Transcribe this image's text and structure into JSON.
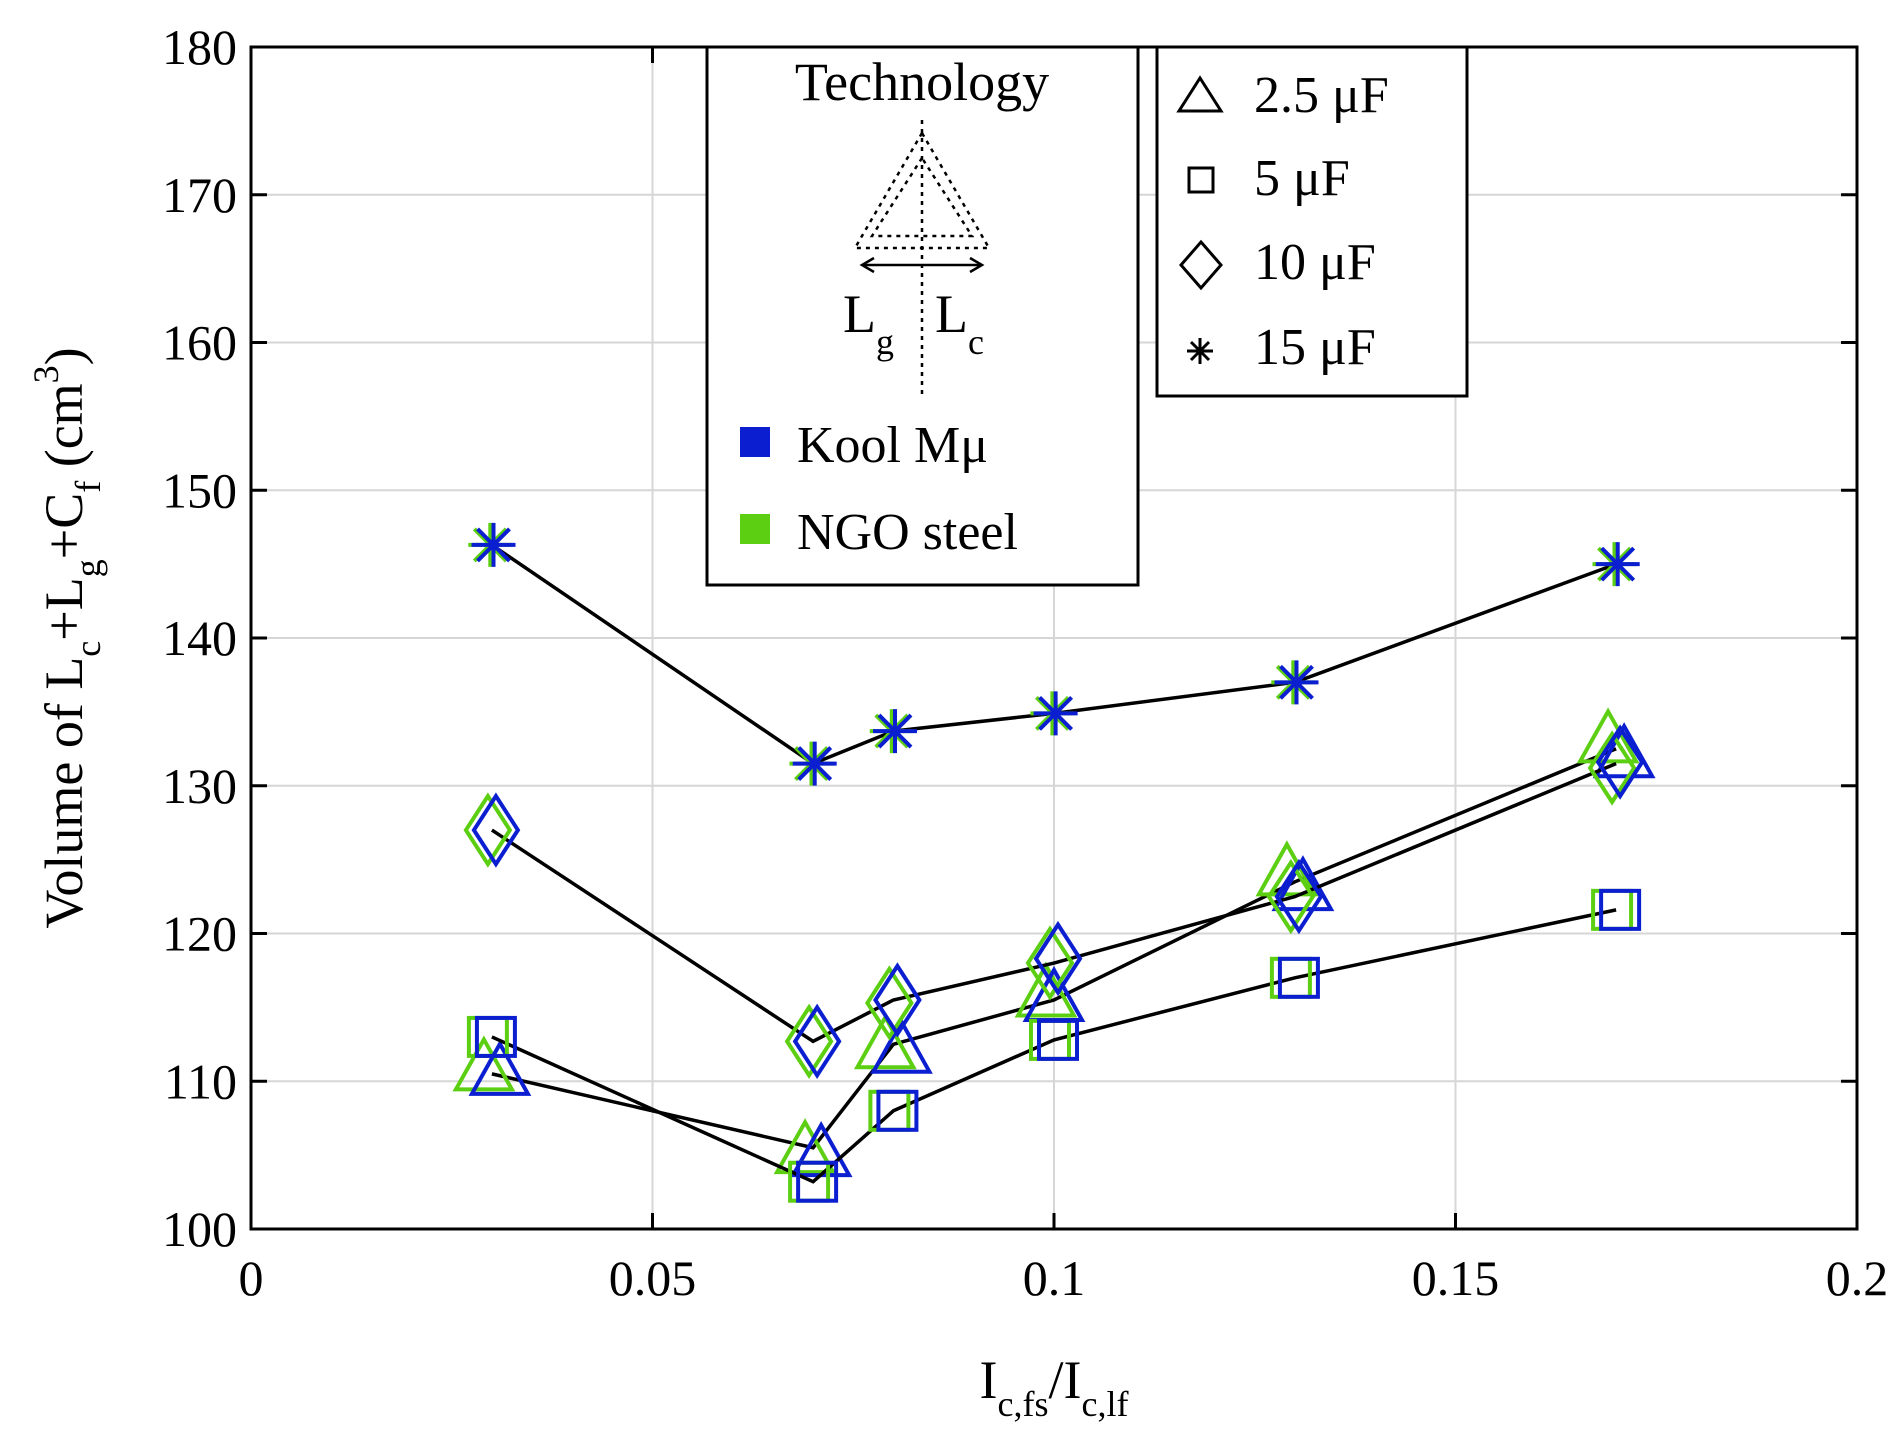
{
  "chart_data": {
    "type": "scatter",
    "xlabel": {
      "main": "I",
      "sub1": "c,fs",
      "slash": "/I",
      "sub2": "c,lf"
    },
    "ylabel": {
      "prefix": "Volume of  L",
      "c_sub": "c",
      "plus1": "+L",
      "g_sub": "g",
      "plus2": "+C",
      "f_sub": "f",
      "unit_open": " (cm",
      "unit_sup": "3",
      "unit_close": ")"
    },
    "xlim": [
      0,
      0.2
    ],
    "ylim": [
      100,
      180
    ],
    "xticks": [
      0,
      0.05,
      0.1,
      0.15,
      0.2
    ],
    "xtick_labels": [
      "0",
      "0.05",
      "0.1",
      "0.15",
      "0.2"
    ],
    "yticks": [
      100,
      110,
      120,
      130,
      140,
      150,
      160,
      170,
      180
    ],
    "ytick_labels": [
      "100",
      "110",
      "120",
      "130",
      "140",
      "150",
      "160",
      "170",
      "180"
    ],
    "grid": true,
    "colors": {
      "kool": "#0b1fd1",
      "ngo": "#5ccf12",
      "line": "#000000",
      "grid": "#d6d6d6"
    },
    "series": [
      {
        "name": "2.5 μF",
        "marker": "triangle",
        "line": [
          [
            0.03,
            110.5
          ],
          [
            0.07,
            105.5
          ],
          [
            0.08,
            112.5
          ],
          [
            0.1,
            115.5
          ],
          [
            0.13,
            123.5
          ],
          [
            0.17,
            132.5
          ]
        ],
        "kool": [
          [
            0.031,
            110.5
          ],
          [
            0.071,
            105.0
          ],
          [
            0.081,
            112.0
          ],
          [
            0.1,
            115.5
          ],
          [
            0.131,
            123.0
          ],
          [
            0.171,
            132.0
          ]
        ],
        "ngo": [
          [
            0.029,
            110.8
          ],
          [
            0.069,
            105.2
          ],
          [
            0.079,
            112.3
          ],
          [
            0.099,
            115.8
          ],
          [
            0.129,
            124.0
          ],
          [
            0.169,
            133.0
          ]
        ]
      },
      {
        "name": "5 μF",
        "marker": "square",
        "line": [
          [
            0.03,
            113.0
          ],
          [
            0.07,
            103.2
          ],
          [
            0.08,
            108.0
          ],
          [
            0.1,
            112.8
          ],
          [
            0.13,
            117.0
          ],
          [
            0.17,
            121.6
          ]
        ],
        "kool": [
          [
            0.0305,
            113.0
          ],
          [
            0.0705,
            103.2
          ],
          [
            0.0805,
            108.0
          ],
          [
            0.1005,
            112.8
          ],
          [
            0.1305,
            117.0
          ],
          [
            0.1705,
            121.6
          ]
        ],
        "ngo": [
          [
            0.0295,
            113.0
          ],
          [
            0.0695,
            103.2
          ],
          [
            0.0795,
            108.0
          ],
          [
            0.0995,
            112.8
          ],
          [
            0.1295,
            117.0
          ],
          [
            0.1695,
            121.6
          ]
        ]
      },
      {
        "name": "10 μF",
        "marker": "diamond",
        "line": [
          [
            0.03,
            127.0
          ],
          [
            0.07,
            112.7
          ],
          [
            0.08,
            115.5
          ],
          [
            0.1,
            118.0
          ],
          [
            0.13,
            122.5
          ],
          [
            0.17,
            131.5
          ]
        ],
        "kool": [
          [
            0.0305,
            127.0
          ],
          [
            0.0705,
            112.7
          ],
          [
            0.0805,
            115.5
          ],
          [
            0.1005,
            118.3
          ],
          [
            0.1305,
            122.5
          ],
          [
            0.1705,
            131.6
          ]
        ],
        "ngo": [
          [
            0.0295,
            127.0
          ],
          [
            0.0695,
            112.7
          ],
          [
            0.0795,
            115.3
          ],
          [
            0.0995,
            118.0
          ],
          [
            0.1295,
            122.5
          ],
          [
            0.1695,
            131.2
          ]
        ]
      },
      {
        "name": "15 μF",
        "marker": "asterisk",
        "line": [
          [
            0.03,
            146.3
          ],
          [
            0.07,
            131.5
          ],
          [
            0.08,
            133.7
          ],
          [
            0.1,
            134.9
          ],
          [
            0.13,
            137.0
          ],
          [
            0.17,
            145.0
          ]
        ],
        "kool": [
          [
            0.0302,
            146.3
          ],
          [
            0.0702,
            131.5
          ],
          [
            0.0802,
            133.7
          ],
          [
            0.1002,
            134.9
          ],
          [
            0.1302,
            137.0
          ],
          [
            0.1702,
            145.0
          ]
        ],
        "ngo": [
          [
            0.0298,
            146.3
          ],
          [
            0.0698,
            131.5
          ],
          [
            0.0798,
            133.7
          ],
          [
            0.0998,
            134.9
          ],
          [
            0.1298,
            137.0
          ],
          [
            0.1698,
            145.0
          ]
        ]
      }
    ],
    "legend_technology": {
      "title": "Technology",
      "diagram_left": "L",
      "diagram_left_sub": "g",
      "diagram_right": "L",
      "diagram_right_sub": "c",
      "entries": [
        {
          "label": "Kool Mμ",
          "color": "#0b1fd1"
        },
        {
          "label": "NGO steel",
          "color": "#5ccf12"
        }
      ]
    },
    "legend_capacitance": {
      "entries": [
        {
          "label": "2.5 μF",
          "marker": "triangle"
        },
        {
          "label": "5 μF",
          "marker": "square"
        },
        {
          "label": "10 μF",
          "marker": "diamond"
        },
        {
          "label": "15 μF",
          "marker": "asterisk"
        }
      ]
    }
  }
}
